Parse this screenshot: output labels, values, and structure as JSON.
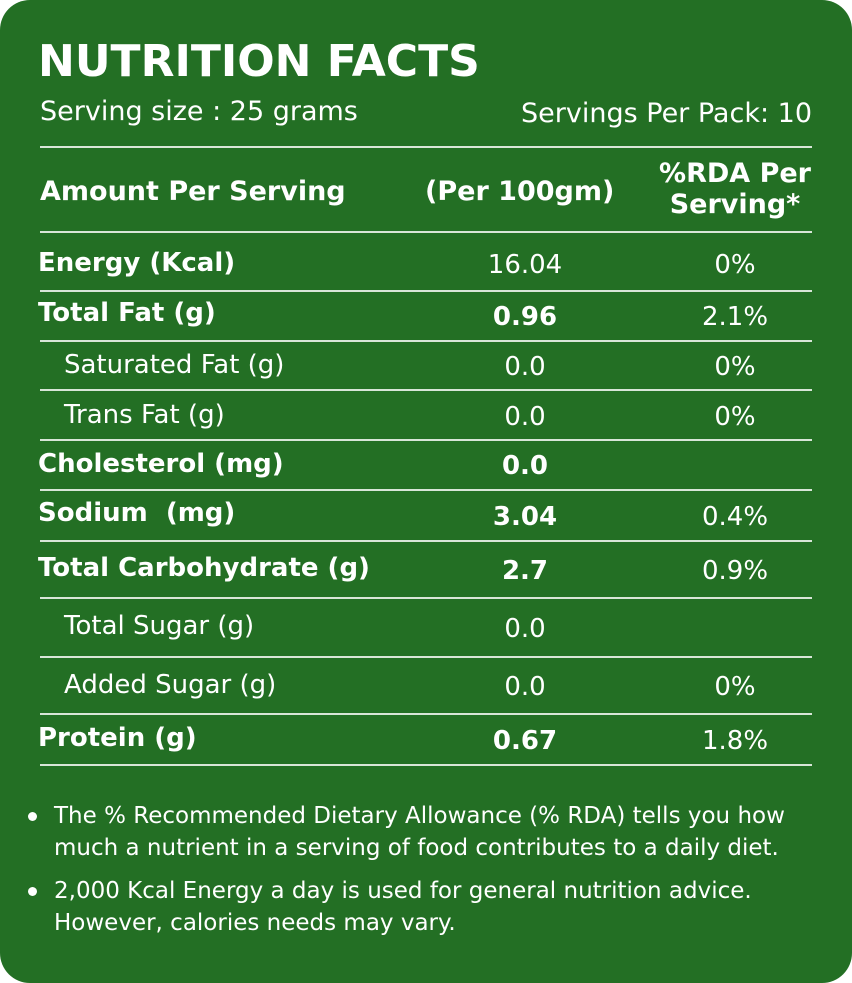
{
  "title": "NUTRITION FACTS",
  "serving_size": "Serving size : 25 grams",
  "servings_per_pack": "Servings Per Pack: 10",
  "headers": {
    "amount": "Amount Per Serving",
    "per100": "(Per 100gm)",
    "rda_line1": "%RDA Per",
    "rda_line2": "Serving*"
  },
  "rows": [
    {
      "label": "Energy (Kcal)",
      "value": "16.04",
      "rda": "0%"
    },
    {
      "label": "Total Fat (g)",
      "value": "0.96",
      "rda": "2.1%"
    },
    {
      "label": "Saturated Fat (g)",
      "value": "0.0",
      "rda": "0%"
    },
    {
      "label": "Trans Fat (g)",
      "value": "0.0",
      "rda": "0%"
    },
    {
      "label": "Cholesterol (mg)",
      "value": "0.0",
      "rda": ""
    },
    {
      "label": "Sodium  (mg)",
      "value": "3.04",
      "rda": "0.4%"
    },
    {
      "label": "Total Carbohydrate (g)",
      "value": "2.7",
      "rda": "0.9%"
    },
    {
      "label": "Total Sugar (g)",
      "value": "0.0",
      "rda": ""
    },
    {
      "label": "Added Sugar (g)",
      "value": "0.0",
      "rda": "0%"
    },
    {
      "label": "Protein (g)",
      "value": "0.67",
      "rda": "1.8%"
    }
  ],
  "notes": [
    "The % Recommended Dietary Allowance (% RDA) tells you how much a nutrient in a serving of food contributes to a daily diet.",
    "2,000 Kcal Energy a day is used for general nutrition advice. However, calories needs may vary."
  ],
  "colors": {
    "background": "#236f24",
    "text": "#ffffff"
  }
}
